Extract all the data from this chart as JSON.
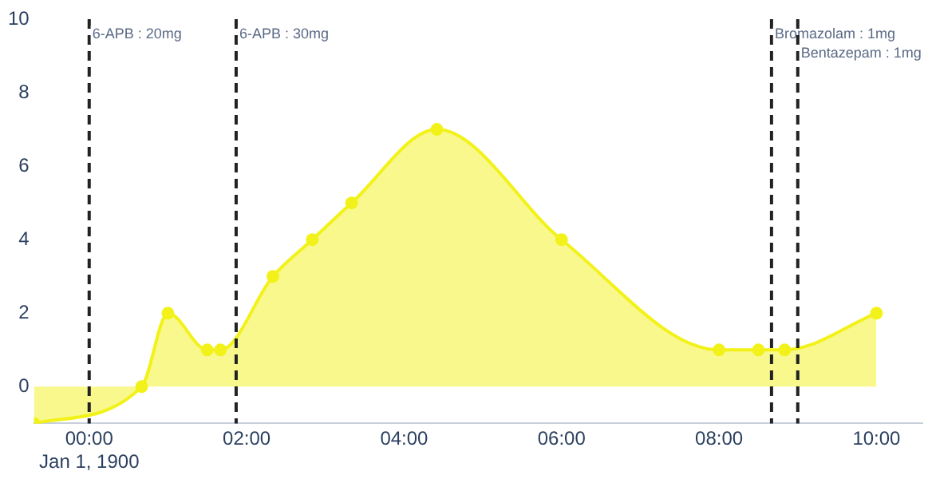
{
  "chart_data": {
    "type": "area",
    "x": [
      "1899-12-31T23:18",
      "1900-01-01T00:40",
      "1900-01-01T01:00",
      "1900-01-01T01:30",
      "1900-01-01T01:40",
      "1900-01-01T02:20",
      "1900-01-01T02:50",
      "1900-01-01T03:20",
      "1900-01-01T04:25",
      "1900-01-01T06:00",
      "1900-01-01T08:00",
      "1900-01-01T08:30",
      "1900-01-01T08:50",
      "1900-01-01T10:00"
    ],
    "series": [
      {
        "color": "#f2f21a",
        "values": [
          -1,
          0,
          2,
          1,
          1,
          3,
          4,
          5,
          7,
          4,
          1,
          1,
          1,
          2
        ]
      }
    ],
    "xticks": [
      {
        "value": "1900-01-01T00:00",
        "label": "00:00\nJan 1, 1900"
      },
      {
        "value": "1900-01-01T02:00",
        "label": "02:00"
      },
      {
        "value": "1900-01-01T04:00",
        "label": "04:00"
      },
      {
        "value": "1900-01-01T06:00",
        "label": "06:00"
      },
      {
        "value": "1900-01-01T08:00",
        "label": "08:00"
      },
      {
        "value": "1900-01-01T10:00",
        "label": "10:00"
      }
    ],
    "xlim": [
      "1899-12-31T23:18",
      "1900-01-01T10:35"
    ],
    "ylim": [
      -1,
      10
    ],
    "yticks": [
      0,
      2,
      4,
      6,
      8,
      10
    ],
    "grid": false,
    "legend": false,
    "marker": "circle",
    "ref_lines": [
      {
        "axis": "x",
        "value": "1900-01-01T00:00",
        "label": "6-APB : 20mg",
        "color": "#222222",
        "line_style": "dashed"
      },
      {
        "axis": "x",
        "value": "1900-01-01T01:52",
        "label": "6-APB : 30mg",
        "color": "#222222",
        "line_style": "dashed"
      },
      {
        "axis": "x",
        "value": "1900-01-01T08:40",
        "label": "Bromazolam : 1mg",
        "color": "#222222",
        "line_style": "dashed"
      },
      {
        "axis": "x",
        "value": "1900-01-01T09:00",
        "label": "Bentazepam : 1mg",
        "color": "#222222",
        "line_style": "dashed"
      }
    ]
  }
}
